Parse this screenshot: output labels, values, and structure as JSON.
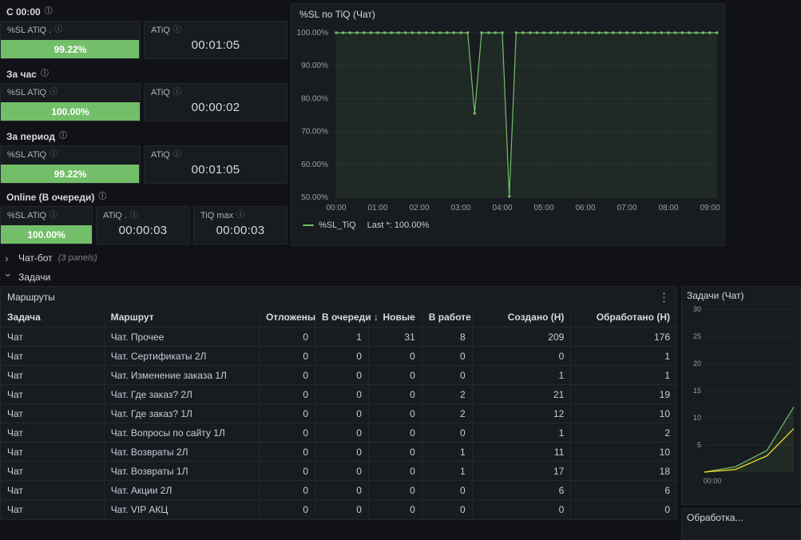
{
  "colors": {
    "green": "#73bf69",
    "yellow": "#fade2a",
    "panel_bg": "#181b1f",
    "page_bg": "#111217"
  },
  "stats": [
    {
      "title": "С 00:00",
      "panels": [
        {
          "title": "%SL ATiQ .",
          "value": "99.22%",
          "pct": 99.22
        },
        {
          "title": "ATiQ",
          "value": "00:01:05"
        }
      ]
    },
    {
      "title": "За час",
      "panels": [
        {
          "title": "%SL ATiQ",
          "value": "100.00%",
          "pct": 100
        },
        {
          "title": "ATiQ",
          "value": "00:00:02"
        }
      ]
    },
    {
      "title": "За период",
      "panels": [
        {
          "title": "%SL ATiQ",
          "value": "99.22%",
          "pct": 99.22
        },
        {
          "title": "ATiQ",
          "value": "00:01:05"
        }
      ]
    },
    {
      "title": "Online (В очереди)",
      "panels": [
        {
          "title": "%SL ATiQ",
          "value": "100.00%",
          "pct": 100
        },
        {
          "title": "ATiQ .",
          "value": "00:00:03"
        },
        {
          "title": "TiQ max",
          "value": "00:00:03"
        }
      ]
    }
  ],
  "rows": {
    "chatbot": {
      "label": "Чат-бот",
      "meta": "(3 panels)"
    },
    "tasks": {
      "label": "Задачи"
    }
  },
  "table": {
    "title": "Маршруты",
    "columns": [
      {
        "label": "Задача"
      },
      {
        "label": "Маршрут"
      },
      {
        "label": "Отложены"
      },
      {
        "label": "В очереди",
        "sort": "↓"
      },
      {
        "label": "Новые"
      },
      {
        "label": "В работе"
      },
      {
        "label": "Создано (Н)"
      },
      {
        "label": "Обработано (Н)"
      }
    ],
    "rows": [
      [
        "Чат",
        "Чат. Прочее",
        "0",
        "1",
        "31",
        "8",
        "209",
        "176"
      ],
      [
        "Чат",
        "Чат. Сертификаты 2Л",
        "0",
        "0",
        "0",
        "0",
        "0",
        "1"
      ],
      [
        "Чат",
        "Чат. Изменение заказа 1Л",
        "0",
        "0",
        "0",
        "0",
        "1",
        "1"
      ],
      [
        "Чат",
        "Чат. Где заказ? 2Л",
        "0",
        "0",
        "0",
        "2",
        "21",
        "19"
      ],
      [
        "Чат",
        "Чат. Где заказ? 1Л",
        "0",
        "0",
        "0",
        "2",
        "12",
        "10"
      ],
      [
        "Чат",
        "Чат. Вопросы по сайту 1Л",
        "0",
        "0",
        "0",
        "0",
        "1",
        "2"
      ],
      [
        "Чат",
        "Чат. Возвраты 2Л",
        "0",
        "0",
        "0",
        "1",
        "11",
        "10"
      ],
      [
        "Чат",
        "Чат. Возвраты 1Л",
        "0",
        "0",
        "0",
        "1",
        "17",
        "18"
      ],
      [
        "Чат",
        "Чат. Акции 2Л",
        "0",
        "0",
        "0",
        "0",
        "6",
        "6"
      ],
      [
        "Чат",
        "Чат. VIP АКЦ",
        "0",
        "0",
        "0",
        "0",
        "0",
        "0"
      ]
    ]
  },
  "bottom_panel": {
    "title": "Обработка..."
  },
  "chart_data": [
    {
      "type": "line",
      "title": "%SL по TiQ (Чат)",
      "ylim": [
        50,
        100
      ],
      "y_tick_vals": [
        100,
        90,
        80,
        70,
        60,
        50
      ],
      "y_tick_labels": [
        "100.00%",
        "90.00%",
        "80.00%",
        "70.00%",
        "60.00%",
        "50.00%"
      ],
      "x_tick_labels": [
        "00:00",
        "01:00",
        "02:00",
        "03:00",
        "04:00",
        "05:00",
        "06:00",
        "07:00",
        "08:00",
        "09:00"
      ],
      "t_step_min": 10,
      "legend": {
        "name": "%SL_TiQ",
        "last": "Last *: 100.00%",
        "position": "bottom"
      },
      "series": [
        {
          "name": "%SL_TiQ",
          "color": "#73bf69",
          "values": [
            100,
            100,
            100,
            100,
            100,
            100,
            100,
            100,
            100,
            100,
            100,
            100,
            100,
            100,
            100,
            100,
            100,
            100,
            100,
            100,
            75.5,
            100,
            100,
            100,
            100,
            50.3,
            100,
            100,
            100,
            100,
            100,
            100,
            100,
            100,
            100,
            100,
            100,
            100,
            100,
            100,
            100,
            100,
            100,
            100,
            100,
            100,
            100,
            100,
            100,
            100,
            100,
            100,
            100,
            100,
            100,
            100
          ]
        }
      ]
    },
    {
      "type": "line",
      "title": "Задачи (Чат)",
      "ylim": [
        0,
        30
      ],
      "y_tick_vals": [
        30,
        25,
        20,
        15,
        10,
        5
      ],
      "y_tick_labels": [
        "30",
        "25",
        "20",
        "15",
        "10",
        "5"
      ],
      "x_tick_labels": [
        "00:00"
      ],
      "series": [
        {
          "name": "series-green",
          "color": "#73bf69",
          "points": [
            [
              0,
              0
            ],
            [
              0.35,
              1
            ],
            [
              0.7,
              4
            ],
            [
              1,
              12
            ]
          ]
        },
        {
          "name": "series-yellow",
          "color": "#fade2a",
          "points": [
            [
              0,
              0
            ],
            [
              0.35,
              0.5
            ],
            [
              0.7,
              3
            ],
            [
              1,
              8
            ]
          ]
        }
      ]
    }
  ]
}
